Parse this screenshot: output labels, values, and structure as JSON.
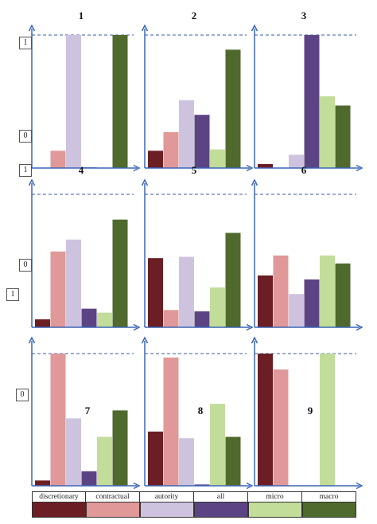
{
  "legend": {
    "labels": [
      "discretionary",
      "contractual",
      "autority",
      "all",
      "micro",
      "macro"
    ],
    "colors": [
      "#6b1e24",
      "#e09898",
      "#cdc3df",
      "#5c4484",
      "#c2dc9a",
      "#4f6a2c"
    ]
  },
  "side_labels": [
    "1",
    "0",
    "1",
    "0",
    "1",
    "0"
  ],
  "chart_data": [
    {
      "type": "bar",
      "title": "1",
      "categories": [
        "discretionary",
        "contractual",
        "autority",
        "all",
        "micro",
        "macro"
      ],
      "values": [
        0.0,
        0.13,
        1.0,
        0.005,
        0.0,
        1.0
      ],
      "ylim": [
        0,
        1
      ]
    },
    {
      "type": "bar",
      "title": "2",
      "categories": [
        "discretionary",
        "contractual",
        "autority",
        "all",
        "micro",
        "macro"
      ],
      "values": [
        0.13,
        0.27,
        0.51,
        0.4,
        0.14,
        0.89
      ],
      "ylim": [
        0,
        1
      ]
    },
    {
      "type": "bar",
      "title": "3",
      "categories": [
        "discretionary",
        "contractual",
        "autority",
        "all",
        "micro",
        "macro"
      ],
      "values": [
        0.03,
        0.0,
        0.1,
        1.0,
        0.54,
        0.47
      ],
      "ylim": [
        0,
        1
      ]
    },
    {
      "type": "bar",
      "title": "4",
      "categories": [
        "discretionary",
        "contractual",
        "autority",
        "all",
        "micro",
        "macro"
      ],
      "values": [
        0.06,
        0.57,
        0.66,
        0.14,
        0.11,
        0.81
      ],
      "ylim": [
        0,
        1
      ]
    },
    {
      "type": "bar",
      "title": "5",
      "categories": [
        "discretionary",
        "contractual",
        "autority",
        "all",
        "micro",
        "macro"
      ],
      "values": [
        0.52,
        0.13,
        0.53,
        0.12,
        0.3,
        0.71
      ],
      "ylim": [
        0,
        1
      ]
    },
    {
      "type": "bar",
      "title": "6",
      "categories": [
        "discretionary",
        "contractual",
        "autority",
        "all",
        "micro",
        "macro"
      ],
      "values": [
        0.39,
        0.54,
        0.25,
        0.36,
        0.54,
        0.48
      ],
      "ylim": [
        0,
        1
      ]
    },
    {
      "type": "bar",
      "title": "7",
      "categories": [
        "discretionary",
        "contractual",
        "autority",
        "all",
        "micro",
        "macro"
      ],
      "values": [
        0.04,
        1.0,
        0.51,
        0.11,
        0.37,
        0.57
      ],
      "ylim": [
        0,
        1
      ]
    },
    {
      "type": "bar",
      "title": "8",
      "categories": [
        "discretionary",
        "contractual",
        "autority",
        "all",
        "micro",
        "macro"
      ],
      "values": [
        0.41,
        0.97,
        0.36,
        0.01,
        0.62,
        0.37
      ],
      "ylim": [
        0,
        1
      ]
    },
    {
      "type": "bar",
      "title": "9",
      "categories": [
        "discretionary",
        "contractual",
        "autority",
        "all",
        "micro",
        "macro"
      ],
      "values": [
        1.0,
        0.88,
        0.0,
        0.0,
        1.0,
        0.0
      ],
      "ylim": [
        0,
        1
      ]
    }
  ]
}
